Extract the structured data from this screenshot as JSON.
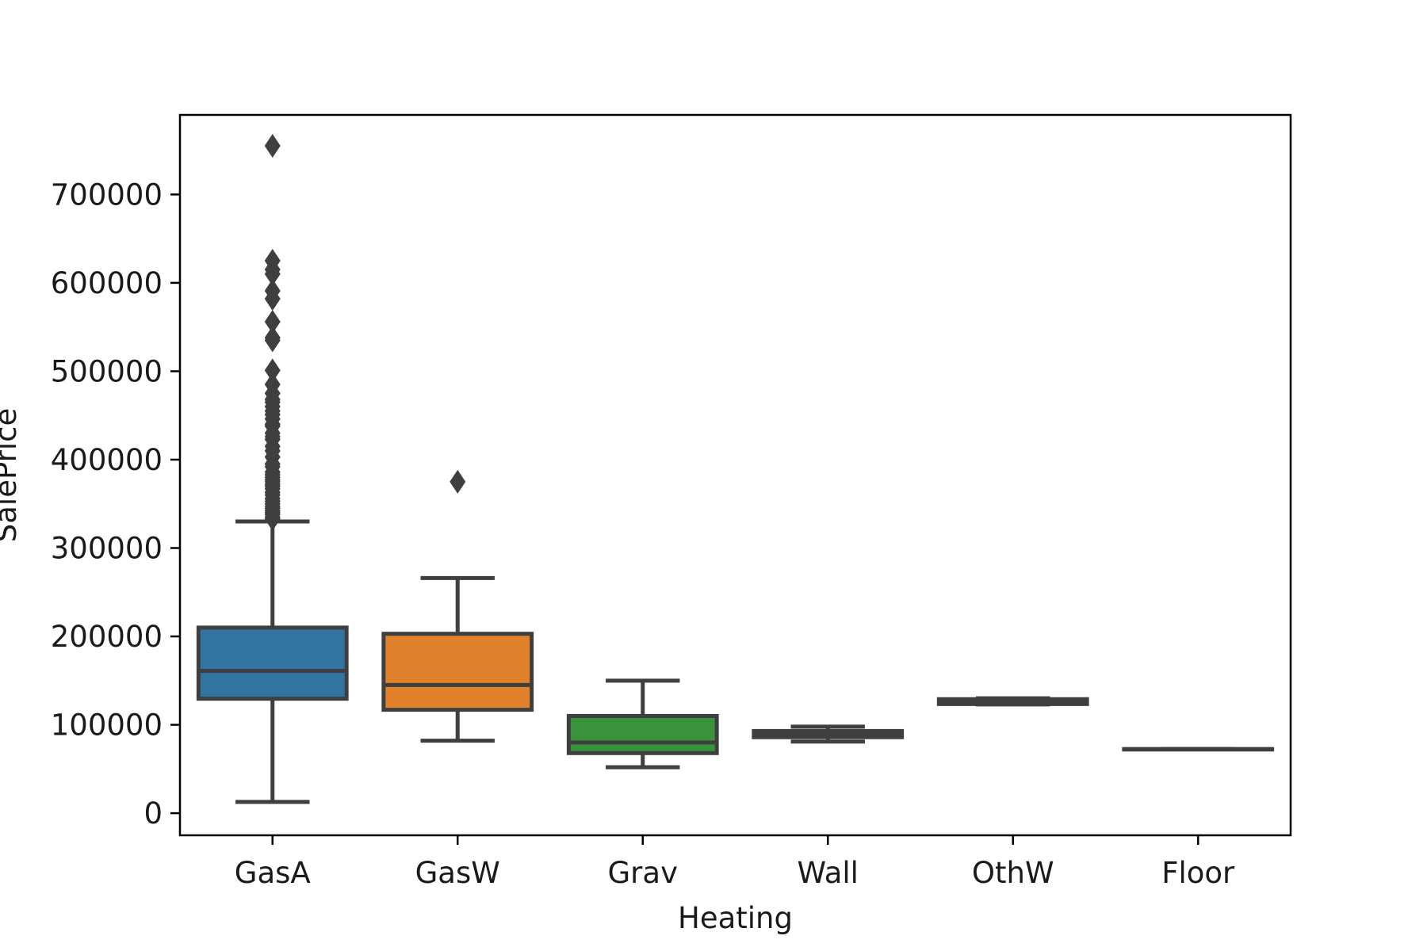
{
  "chart_data": {
    "type": "box",
    "xlabel": "Heating",
    "ylabel": "SalePrice",
    "ylim": [
      -25000,
      790000
    ],
    "yticks": [
      0,
      100000,
      200000,
      300000,
      400000,
      500000,
      600000,
      700000
    ],
    "ytick_labels": [
      "0",
      "100000",
      "200000",
      "300000",
      "400000",
      "500000",
      "600000",
      "700000"
    ],
    "grid": false,
    "legend": "none",
    "categories": [
      "GasA",
      "GasW",
      "Grav",
      "Wall",
      "OthW",
      "Floor"
    ],
    "colors": [
      "#3274a1",
      "#e1812c",
      "#3a923a",
      "#c03d3e",
      "#9372b2",
      "#845b53"
    ],
    "edge_color": "#3f3f3f",
    "boxes": [
      {
        "category": "GasA",
        "whisker_low": 12800,
        "q1": 129500,
        "median": 161000,
        "q3": 210000,
        "whisker_high": 330000,
        "outliers": [
          755000,
          625000,
          615000,
          610000,
          591000,
          582000,
          556000,
          538000,
          535000,
          501000,
          485000,
          475000,
          468000,
          465000,
          460000,
          455000,
          451000,
          446000,
          440000,
          438000,
          430000,
          426000,
          423000,
          415000,
          410000,
          403000,
          395000,
          392000,
          386000,
          383000,
          380000,
          377000,
          375000,
          372000,
          370000,
          367000,
          363000,
          360000,
          356000,
          353000,
          350000,
          347000,
          345000,
          342000,
          340000,
          338000,
          335000,
          333000
        ]
      },
      {
        "category": "GasW",
        "whisker_low": 82000,
        "q1": 117000,
        "median": 145000,
        "q3": 203000,
        "whisker_high": 266000,
        "outliers": [
          375000
        ]
      },
      {
        "category": "Grav",
        "whisker_low": 52000,
        "q1": 68000,
        "median": 80000,
        "q3": 110000,
        "whisker_high": 150000,
        "outliers": []
      },
      {
        "category": "Wall",
        "whisker_low": 81000,
        "q1": 86000,
        "median": 90000,
        "q3": 93000,
        "whisker_high": 98000,
        "outliers": []
      },
      {
        "category": "OthW",
        "whisker_low": 123000,
        "q1": 123500,
        "median": 126000,
        "q3": 129000,
        "whisker_high": 130000,
        "outliers": []
      },
      {
        "category": "Floor",
        "whisker_low": 72500,
        "q1": 72500,
        "median": 72500,
        "q3": 72500,
        "whisker_high": 72500,
        "outliers": []
      }
    ]
  }
}
